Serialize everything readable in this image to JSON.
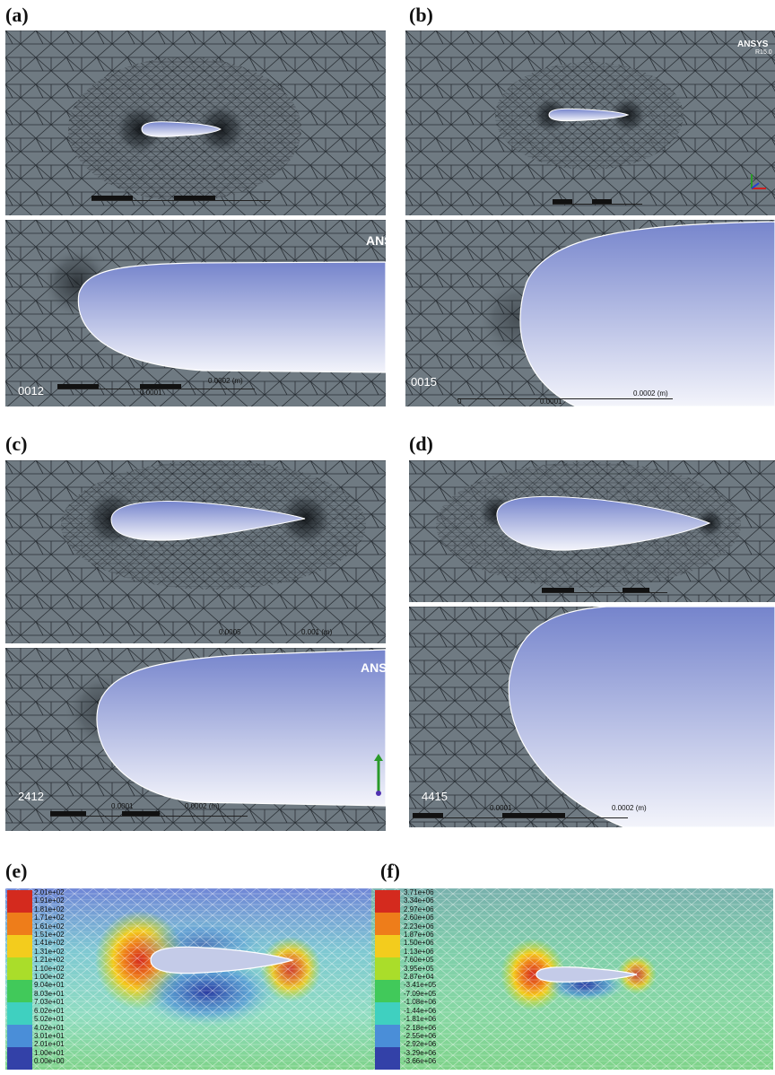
{
  "panels": {
    "a": {
      "label": "(a)",
      "airfoil": "0012",
      "brand": "ANSYS",
      "scale_mid": "0.0001",
      "scale_end": "0.0002 (m)"
    },
    "b": {
      "label": "(b)",
      "airfoil": "0015",
      "brand": "ANSYS",
      "brand_sub": "R15.0",
      "scale_start": "0",
      "scale_mid": "0.0001",
      "scale_end": "0.0002 (m)"
    },
    "c": {
      "label": "(c)",
      "airfoil": "2412",
      "brand": "ANSYS",
      "scale_mid": "0.0001",
      "scale_end": "0.0002 (m)",
      "top_mid": "0.0005",
      "top_end": "0.001 (m)"
    },
    "d": {
      "label": "(d)",
      "airfoil": "4415",
      "scale_mid": "0.0001",
      "scale_end": "0.0002 (m)"
    },
    "e": {
      "label": "(e)"
    },
    "f": {
      "label": "(f)"
    }
  },
  "legends": {
    "e_ticks": [
      "2.01e+02",
      "1.91e+02",
      "1.81e+02",
      "1.71e+02",
      "1.61e+02",
      "1.51e+02",
      "1.41e+02",
      "1.31e+02",
      "1.21e+02",
      "1.10e+02",
      "1.00e+02",
      "9.04e+01",
      "8.03e+01",
      "7.03e+01",
      "6.02e+01",
      "5.02e+01",
      "4.02e+01",
      "3.01e+01",
      "2.01e+01",
      "1.00e+01",
      "0.00e+00"
    ],
    "f_ticks": [
      "3.71e+06",
      "3.34e+06",
      "2.97e+06",
      "2.60e+06",
      "2.23e+06",
      "1.87e+06",
      "1.50e+06",
      "1.13e+06",
      "7.60e+05",
      "3.95e+05",
      "2.87e+04",
      "-3.41e+05",
      "-7.09e+05",
      "-1.08e+06",
      "-1.44e+06",
      "-1.81e+06",
      "-2.18e+06",
      "-2.55e+06",
      "-2.92e+06",
      "-3.29e+06",
      "-3.66e+06"
    ],
    "colors": [
      "#d42a1e",
      "#ee7d1a",
      "#f3cc1d",
      "#aadd2a",
      "#41c95a",
      "#3fd0c0",
      "#4a8ed8",
      "#3341a8"
    ]
  }
}
